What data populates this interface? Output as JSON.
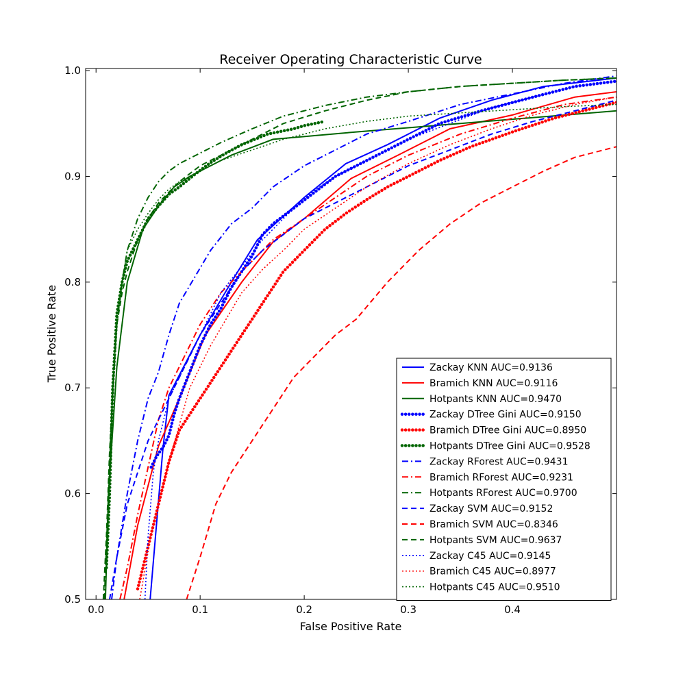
{
  "chart_data": {
    "type": "line",
    "title": "Receiver Operating Characteristic Curve",
    "xlabel": "False Positive Rate",
    "ylabel": "True Positive Rate",
    "xlim": [
      -0.01,
      0.5
    ],
    "ylim": [
      0.5,
      1.002
    ],
    "xticks": [
      "0.0",
      "0.1",
      "0.2",
      "0.3",
      "0.4"
    ],
    "yticks": [
      "0.5",
      "0.6",
      "0.7",
      "0.8",
      "0.9",
      "1.0"
    ],
    "legend_position": "lower-right",
    "grid": false,
    "colors": {
      "Zackay": "#0000ff",
      "Bramich": "#ff0000",
      "Hotpants": "#006400"
    },
    "series": [
      {
        "name": "Zackay KNN AUC=0.9136",
        "color": "#0000ff",
        "style": "solid",
        "x": [
          0.052,
          0.064,
          0.07,
          0.1,
          0.13,
          0.155,
          0.2,
          0.24,
          0.28,
          0.33,
          0.38,
          0.43,
          0.5
        ],
        "y": [
          0.5,
          0.64,
          0.693,
          0.75,
          0.8,
          0.84,
          0.88,
          0.912,
          0.93,
          0.955,
          0.972,
          0.985,
          0.993
        ]
      },
      {
        "name": "Bramich KNN AUC=0.9116",
        "color": "#ff0000",
        "style": "solid",
        "x": [
          0.027,
          0.04,
          0.06,
          0.08,
          0.105,
          0.14,
          0.17,
          0.2,
          0.245,
          0.29,
          0.34,
          0.4,
          0.46,
          0.5
        ],
        "y": [
          0.5,
          0.57,
          0.645,
          0.69,
          0.75,
          0.8,
          0.838,
          0.86,
          0.898,
          0.92,
          0.945,
          0.958,
          0.975,
          0.98
        ]
      },
      {
        "name": "Hotpants KNN AUC=0.9470",
        "color": "#006400",
        "style": "solid",
        "x": [
          0.009,
          0.012,
          0.02,
          0.03,
          0.045,
          0.06,
          0.075,
          0.09,
          0.11,
          0.13,
          0.17,
          0.25,
          0.35,
          0.5
        ],
        "y": [
          0.5,
          0.6,
          0.72,
          0.8,
          0.85,
          0.872,
          0.89,
          0.9,
          0.91,
          0.92,
          0.935,
          0.942,
          0.95,
          0.962
        ]
      },
      {
        "name": "Zackay DTree Gini AUC=0.9150",
        "color": "#0000ff",
        "style": "dotted-heavy",
        "x": [
          0.053,
          0.058,
          0.065,
          0.07,
          0.075,
          0.08,
          0.09,
          0.1,
          0.11,
          0.12,
          0.13,
          0.14,
          0.15,
          0.16,
          0.17,
          0.19,
          0.21,
          0.23,
          0.26,
          0.3,
          0.33,
          0.37,
          0.42,
          0.46,
          0.5
        ],
        "y": [
          0.625,
          0.635,
          0.645,
          0.655,
          0.675,
          0.69,
          0.715,
          0.74,
          0.76,
          0.775,
          0.795,
          0.81,
          0.825,
          0.845,
          0.855,
          0.87,
          0.885,
          0.9,
          0.915,
          0.935,
          0.95,
          0.962,
          0.975,
          0.985,
          0.99
        ]
      },
      {
        "name": "Bramich DTree Gini AUC=0.8950",
        "color": "#ff0000",
        "style": "dotted-heavy",
        "x": [
          0.04,
          0.045,
          0.05,
          0.06,
          0.07,
          0.08,
          0.09,
          0.1,
          0.11,
          0.12,
          0.14,
          0.15,
          0.16,
          0.17,
          0.18,
          0.2,
          0.22,
          0.24,
          0.26,
          0.28,
          0.3,
          0.33,
          0.36,
          0.4,
          0.44,
          0.48,
          0.5
        ],
        "y": [
          0.51,
          0.53,
          0.55,
          0.59,
          0.63,
          0.66,
          0.675,
          0.69,
          0.705,
          0.72,
          0.75,
          0.765,
          0.78,
          0.795,
          0.81,
          0.83,
          0.85,
          0.865,
          0.878,
          0.89,
          0.9,
          0.915,
          0.928,
          0.942,
          0.955,
          0.965,
          0.97
        ]
      },
      {
        "name": "Hotpants DTree Gini AUC=0.9528",
        "color": "#006400",
        "style": "dotted-heavy",
        "x": [
          0.01,
          0.013,
          0.016,
          0.02,
          0.025,
          0.03,
          0.04,
          0.05,
          0.06,
          0.07,
          0.08,
          0.095,
          0.11,
          0.125,
          0.14,
          0.15,
          0.165,
          0.19,
          0.2,
          0.21,
          0.22
        ],
        "y": [
          0.53,
          0.6,
          0.7,
          0.77,
          0.8,
          0.82,
          0.84,
          0.86,
          0.872,
          0.883,
          0.89,
          0.902,
          0.913,
          0.922,
          0.93,
          0.934,
          0.94,
          0.945,
          0.948,
          0.95,
          0.952
        ]
      },
      {
        "name": "Zackay RForest AUC=0.9431",
        "color": "#0000ff",
        "style": "dashdot",
        "x": [
          0.015,
          0.02,
          0.03,
          0.04,
          0.05,
          0.06,
          0.07,
          0.08,
          0.095,
          0.11,
          0.13,
          0.15,
          0.17,
          0.2,
          0.23,
          0.26,
          0.3,
          0.35,
          0.4,
          0.45,
          0.5
        ],
        "y": [
          0.5,
          0.54,
          0.6,
          0.65,
          0.69,
          0.715,
          0.75,
          0.78,
          0.805,
          0.83,
          0.855,
          0.87,
          0.89,
          0.91,
          0.925,
          0.94,
          0.952,
          0.968,
          0.978,
          0.988,
          0.995
        ]
      },
      {
        "name": "Bramich RForest AUC=0.9231",
        "color": "#ff0000",
        "style": "dashdot",
        "x": [
          0.023,
          0.03,
          0.04,
          0.05,
          0.06,
          0.07,
          0.08,
          0.1,
          0.12,
          0.14,
          0.17,
          0.2,
          0.23,
          0.26,
          0.3,
          0.35,
          0.4,
          0.45,
          0.5
        ],
        "y": [
          0.5,
          0.53,
          0.58,
          0.625,
          0.67,
          0.7,
          0.72,
          0.76,
          0.79,
          0.81,
          0.84,
          0.86,
          0.88,
          0.9,
          0.92,
          0.94,
          0.955,
          0.968,
          0.975
        ]
      },
      {
        "name": "Hotpants RForest AUC=0.9700",
        "color": "#006400",
        "style": "dashdot",
        "x": [
          0.008,
          0.012,
          0.016,
          0.02,
          0.025,
          0.03,
          0.04,
          0.05,
          0.06,
          0.07,
          0.08,
          0.1,
          0.12,
          0.15,
          0.18,
          0.22,
          0.26,
          0.3,
          0.35,
          0.4,
          0.45,
          0.5
        ],
        "y": [
          0.5,
          0.6,
          0.7,
          0.76,
          0.8,
          0.83,
          0.86,
          0.88,
          0.895,
          0.905,
          0.912,
          0.922,
          0.932,
          0.945,
          0.957,
          0.967,
          0.975,
          0.98,
          0.985,
          0.988,
          0.991,
          0.993
        ]
      },
      {
        "name": "Zackay SVM AUC=0.9152",
        "color": "#0000ff",
        "style": "dashed",
        "x": [
          0.013,
          0.02,
          0.03,
          0.04,
          0.05,
          0.06,
          0.07,
          0.085,
          0.1,
          0.12,
          0.14,
          0.16,
          0.18,
          0.2,
          0.23,
          0.26,
          0.3,
          0.34,
          0.38,
          0.42,
          0.46,
          0.5
        ],
        "y": [
          0.5,
          0.54,
          0.59,
          0.62,
          0.65,
          0.67,
          0.69,
          0.72,
          0.75,
          0.78,
          0.81,
          0.83,
          0.845,
          0.86,
          0.875,
          0.89,
          0.91,
          0.925,
          0.94,
          0.952,
          0.962,
          0.972
        ]
      },
      {
        "name": "Bramich SVM AUC=0.8346",
        "color": "#ff0000",
        "style": "dashed",
        "x": [
          0.087,
          0.1,
          0.115,
          0.13,
          0.15,
          0.17,
          0.19,
          0.21,
          0.23,
          0.25,
          0.28,
          0.31,
          0.34,
          0.37,
          0.4,
          0.43,
          0.46,
          0.5
        ],
        "y": [
          0.5,
          0.54,
          0.59,
          0.62,
          0.65,
          0.68,
          0.71,
          0.73,
          0.75,
          0.765,
          0.8,
          0.83,
          0.855,
          0.875,
          0.89,
          0.905,
          0.918,
          0.928
        ]
      },
      {
        "name": "Hotpants SVM AUC=0.9637",
        "color": "#006400",
        "style": "dashed",
        "x": [
          0.007,
          0.01,
          0.013,
          0.017,
          0.02,
          0.025,
          0.03,
          0.04,
          0.05,
          0.06,
          0.07,
          0.08,
          0.1,
          0.12,
          0.15,
          0.18,
          0.22,
          0.26,
          0.3,
          0.35,
          0.4,
          0.45,
          0.5
        ],
        "y": [
          0.5,
          0.56,
          0.64,
          0.71,
          0.76,
          0.79,
          0.81,
          0.84,
          0.86,
          0.875,
          0.885,
          0.895,
          0.91,
          0.92,
          0.935,
          0.95,
          0.962,
          0.972,
          0.98,
          0.985,
          0.988,
          0.991,
          0.993
        ]
      },
      {
        "name": "Zackay C45 AUC=0.9145",
        "color": "#0000ff",
        "style": "dotted",
        "x": [
          0.047,
          0.05,
          0.055,
          0.06,
          0.065,
          0.07,
          0.08,
          0.09,
          0.1,
          0.11,
          0.12,
          0.14,
          0.16,
          0.18,
          0.2,
          0.23,
          0.26,
          0.3,
          0.34,
          0.38,
          0.42,
          0.46,
          0.5
        ],
        "y": [
          0.5,
          0.56,
          0.62,
          0.65,
          0.67,
          0.69,
          0.71,
          0.73,
          0.75,
          0.77,
          0.79,
          0.815,
          0.84,
          0.86,
          0.88,
          0.9,
          0.915,
          0.935,
          0.95,
          0.965,
          0.975,
          0.985,
          0.99
        ]
      },
      {
        "name": "Bramich C45 AUC=0.8977",
        "color": "#ff0000",
        "style": "dotted",
        "x": [
          0.042,
          0.05,
          0.06,
          0.07,
          0.08,
          0.09,
          0.1,
          0.11,
          0.125,
          0.14,
          0.16,
          0.18,
          0.2,
          0.23,
          0.26,
          0.3,
          0.34,
          0.38,
          0.42,
          0.46,
          0.5
        ],
        "y": [
          0.5,
          0.545,
          0.59,
          0.63,
          0.665,
          0.7,
          0.72,
          0.74,
          0.765,
          0.79,
          0.812,
          0.83,
          0.85,
          0.87,
          0.89,
          0.912,
          0.93,
          0.945,
          0.958,
          0.968,
          0.975
        ]
      },
      {
        "name": "Hotpants C45 AUC=0.9510",
        "color": "#006400",
        "style": "dotted",
        "x": [
          0.01,
          0.013,
          0.016,
          0.02,
          0.025,
          0.03,
          0.04,
          0.05,
          0.06,
          0.07,
          0.08,
          0.1,
          0.12,
          0.15,
          0.18,
          0.22,
          0.26,
          0.3,
          0.35,
          0.4,
          0.45,
          0.5
        ],
        "y": [
          0.53,
          0.62,
          0.7,
          0.76,
          0.8,
          0.83,
          0.85,
          0.865,
          0.878,
          0.888,
          0.895,
          0.905,
          0.915,
          0.925,
          0.935,
          0.945,
          0.952,
          0.957,
          0.96,
          0.963,
          0.966,
          0.968
        ]
      }
    ]
  }
}
